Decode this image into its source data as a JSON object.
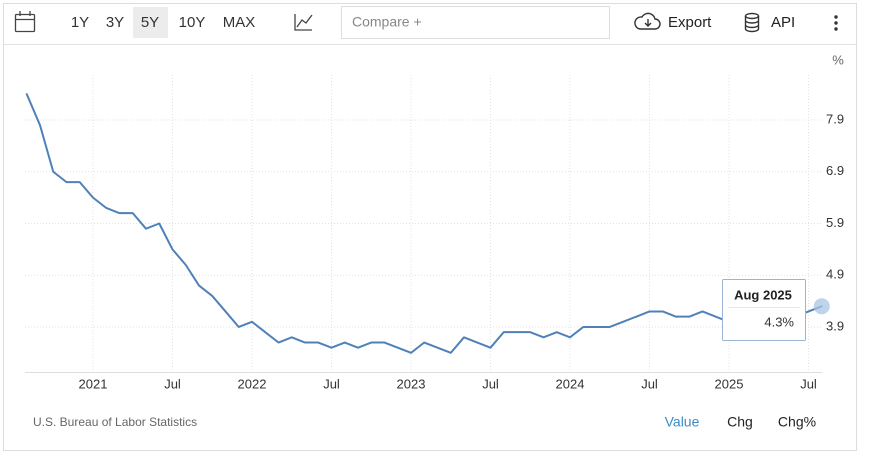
{
  "toolbar": {
    "ranges": [
      "1Y",
      "3Y",
      "5Y",
      "10Y",
      "MAX"
    ],
    "active_range": 2,
    "compare": "Compare +",
    "export": "Export",
    "api": "API"
  },
  "chart_data": {
    "type": "line",
    "ylabel": "%",
    "categories": [
      null,
      null,
      null,
      null,
      null,
      "2021",
      null,
      null,
      null,
      null,
      null,
      "Jul",
      null,
      null,
      null,
      null,
      null,
      "2022",
      null,
      null,
      null,
      null,
      null,
      "Jul",
      null,
      null,
      null,
      null,
      null,
      "2023",
      null,
      null,
      null,
      null,
      null,
      "Jul",
      null,
      null,
      null,
      null,
      null,
      "2024",
      null,
      null,
      null,
      null,
      null,
      "Jul",
      null,
      null,
      null,
      null,
      null,
      "2025",
      null,
      null,
      null,
      null,
      null,
      "Jul",
      null
    ],
    "values": [
      8.4,
      7.8,
      6.9,
      6.7,
      6.7,
      6.4,
      6.2,
      6.1,
      6.1,
      5.8,
      5.9,
      5.4,
      5.1,
      4.7,
      4.5,
      4.2,
      3.9,
      4.0,
      3.8,
      3.6,
      3.7,
      3.6,
      3.6,
      3.5,
      3.6,
      3.5,
      3.6,
      3.6,
      3.5,
      3.4,
      3.6,
      3.5,
      3.4,
      3.7,
      3.6,
      3.5,
      3.8,
      3.8,
      3.8,
      3.7,
      3.8,
      3.7,
      3.9,
      3.9,
      3.9,
      4.0,
      4.1,
      4.2,
      4.2,
      4.1,
      4.1,
      4.2,
      4.1,
      4.0,
      4.1,
      4.2,
      4.2,
      4.2,
      4.1,
      4.2,
      4.3
    ],
    "color": "#4f81b8",
    "ylim": [
      3.03,
      8.77
    ],
    "yticks": [
      3.9,
      4.9,
      5.9,
      6.9,
      7.9
    ],
    "grid": true,
    "tooltip": {
      "title": "Aug 2025",
      "label": "4.3%"
    }
  },
  "footer": {
    "source": "U.S. Bureau of Labor Statistics",
    "tabs": [
      "Value",
      "Chg",
      "Chg%"
    ],
    "active_tab": 0
  }
}
